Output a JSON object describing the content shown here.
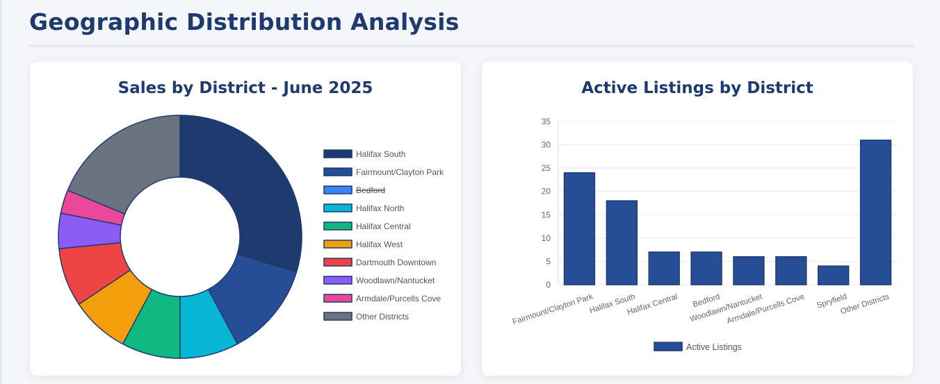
{
  "page": {
    "title": "Geographic Distribution Analysis"
  },
  "chart_data": [
    {
      "type": "pie",
      "variant": "doughnut",
      "title": "Sales by District - June 2025",
      "categories": [
        "Halifax South",
        "Fairmount/Clayton Park",
        "Bedford",
        "Halifax North",
        "Halifax Central",
        "Halifax West",
        "Dartmouth Downtown",
        "Woodlawn/Nantucket",
        "Armdale/Purcells Cove",
        "Other Districts"
      ],
      "values": [
        19,
        8,
        0,
        5,
        5,
        5,
        5,
        3,
        2,
        12
      ],
      "hidden": [
        "Bedford"
      ],
      "colors": [
        "#1e3a6e",
        "#264e96",
        "#3b82f6",
        "#06b6d4",
        "#10b981",
        "#f59e0b",
        "#ef4444",
        "#8b5cf6",
        "#ec4899",
        "#6b7280"
      ],
      "legend_position": "right"
    },
    {
      "type": "bar",
      "title": "Active Listings by District",
      "categories": [
        "Fairmount/Clayton Park",
        "Halifax South",
        "Halifax Central",
        "Bedford",
        "Woodlawn/Nantucket",
        "Armdale/Purcells Cove",
        "Spryfield",
        "Other Districts"
      ],
      "series": [
        {
          "name": "Active Listings",
          "values": [
            24,
            18,
            7,
            7,
            6,
            6,
            4,
            31
          ]
        }
      ],
      "ylim": [
        0,
        35
      ],
      "yticks": [
        0,
        5,
        10,
        15,
        20,
        25,
        30,
        35
      ],
      "bar_color": "#264e96",
      "bar_border": "#1e3a6e",
      "legend_position": "bottom"
    }
  ]
}
